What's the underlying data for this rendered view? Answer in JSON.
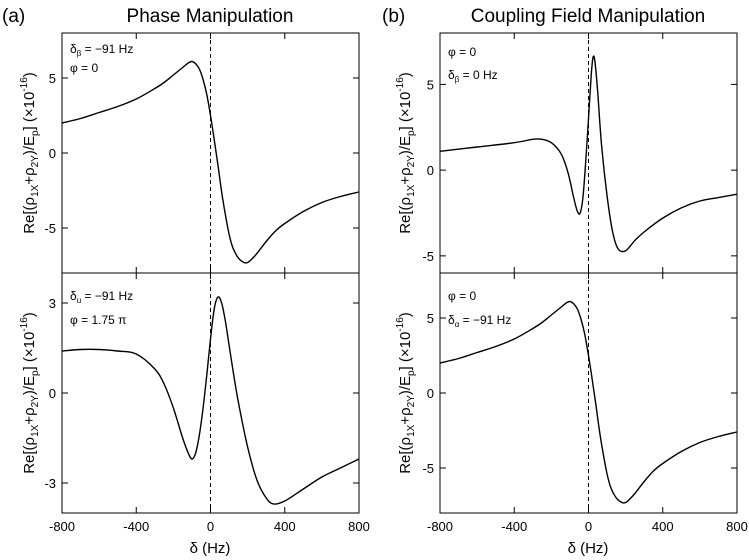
{
  "figure": {
    "panel_a_letter": "(a)",
    "panel_a_title": "Phase Manipulation",
    "panel_b_letter": "(b)",
    "panel_b_title": "Coupling Field Manipulation",
    "shared_xlabel": "δ (Hz)"
  },
  "chart_data": [
    {
      "id": "a-top",
      "type": "line",
      "ylabel": "Re[(ρ1X+ρ2Y)/Ep] (×10^-16)",
      "annotations": [
        "δβ = −91 Hz",
        "φ = 0"
      ],
      "xlim": [
        -800,
        800
      ],
      "ylim": [
        -8,
        8
      ],
      "xticks": [
        -800,
        -400,
        0,
        400,
        800
      ],
      "yticks": [
        -5,
        0,
        5
      ],
      "ytick_labels": [
        "-5",
        "0",
        "5"
      ],
      "vline_x": 0,
      "series": [
        {
          "x": [
            -800,
            -700,
            -600,
            -500,
            -400,
            -300,
            -250,
            -200,
            -150,
            -120,
            -100,
            -80,
            -60,
            -40,
            -20,
            0,
            20,
            40,
            60,
            80,
            100,
            120,
            150,
            180,
            200,
            220,
            250,
            300,
            350,
            400,
            500,
            600,
            700,
            800
          ],
          "values": [
            2.0,
            2.3,
            2.7,
            3.1,
            3.6,
            4.3,
            4.7,
            5.2,
            5.7,
            6.0,
            6.1,
            5.95,
            5.6,
            4.9,
            3.9,
            2.5,
            0.9,
            -0.8,
            -2.6,
            -4.1,
            -5.4,
            -6.3,
            -7.0,
            -7.3,
            -7.3,
            -7.1,
            -6.7,
            -5.9,
            -5.2,
            -4.7,
            -3.9,
            -3.3,
            -2.9,
            -2.6
          ]
        }
      ]
    },
    {
      "id": "a-bottom",
      "type": "line",
      "ylabel": "Re[(ρ1X+ρ2Y)/Ep] (×10^-16)",
      "annotations": [
        "δu = −91 Hz",
        "φ = 1.75 π"
      ],
      "xlim": [
        -800,
        800
      ],
      "ylim": [
        -4,
        4
      ],
      "xticks": [
        -800,
        -400,
        0,
        400,
        800
      ],
      "xtick_labels": [
        "-800",
        "-400",
        "0",
        "400",
        "800"
      ],
      "yticks": [
        -3,
        0,
        3
      ],
      "ytick_labels": [
        "-3",
        "0",
        "3"
      ],
      "vline_x": 0,
      "series": [
        {
          "x": [
            -800,
            -700,
            -600,
            -500,
            -400,
            -300,
            -250,
            -200,
            -150,
            -120,
            -100,
            -80,
            -60,
            -40,
            -20,
            0,
            20,
            40,
            60,
            80,
            100,
            120,
            150,
            200,
            250,
            300,
            340,
            400,
            500,
            600,
            700,
            800
          ],
          "values": [
            1.4,
            1.45,
            1.45,
            1.4,
            1.3,
            0.8,
            0.3,
            -0.5,
            -1.5,
            -2.0,
            -2.2,
            -2.0,
            -1.4,
            -0.5,
            0.6,
            1.8,
            2.8,
            3.2,
            3.0,
            2.4,
            1.6,
            0.8,
            -0.3,
            -1.8,
            -2.9,
            -3.5,
            -3.7,
            -3.6,
            -3.2,
            -2.8,
            -2.5,
            -2.2
          ]
        }
      ]
    },
    {
      "id": "b-top",
      "type": "line",
      "ylabel": "Re[(ρ1X+ρ2Y)/Ep] (×10^-16)",
      "annotations": [
        "φ = 0",
        "δβ = 0 Hz"
      ],
      "xlim": [
        -800,
        800
      ],
      "ylim": [
        -6,
        8
      ],
      "xticks": [
        -800,
        -400,
        0,
        400,
        800
      ],
      "yticks": [
        -5,
        0,
        5
      ],
      "ytick_labels": [
        "-5",
        "0",
        "5"
      ],
      "vline_x": 0,
      "series": [
        {
          "x": [
            -800,
            -600,
            -400,
            -300,
            -250,
            -200,
            -150,
            -120,
            -100,
            -80,
            -60,
            -45,
            -30,
            -15,
            0,
            15,
            25,
            35,
            50,
            70,
            100,
            130,
            160,
            200,
            250,
            300,
            400,
            500,
            600,
            700,
            800
          ],
          "values": [
            1.1,
            1.35,
            1.6,
            1.8,
            1.8,
            1.6,
            1.0,
            0.2,
            -0.6,
            -1.6,
            -2.4,
            -2.5,
            -1.6,
            0.5,
            3.0,
            5.6,
            6.6,
            6.3,
            4.5,
            1.5,
            -1.5,
            -3.6,
            -4.6,
            -4.7,
            -4.1,
            -3.6,
            -2.8,
            -2.2,
            -1.8,
            -1.6,
            -1.4
          ]
        }
      ]
    },
    {
      "id": "b-bottom",
      "type": "line",
      "ylabel": "Re[(ρ1X+ρ2Y)/Ep] (×10^-16)",
      "annotations": [
        "φ = 0",
        "δα = −91 Hz"
      ],
      "xlim": [
        -800,
        800
      ],
      "ylim": [
        -8,
        8
      ],
      "xticks": [
        -800,
        -400,
        0,
        400,
        800
      ],
      "xtick_labels": [
        "-800",
        "-400",
        "0",
        "400",
        "800"
      ],
      "yticks": [
        -5,
        0,
        5
      ],
      "ytick_labels": [
        "-5",
        "0",
        "5"
      ],
      "vline_x": 0,
      "series": [
        {
          "x": [
            -800,
            -700,
            -600,
            -500,
            -400,
            -300,
            -250,
            -200,
            -150,
            -120,
            -100,
            -80,
            -60,
            -40,
            -20,
            0,
            20,
            40,
            60,
            80,
            100,
            120,
            150,
            180,
            200,
            220,
            250,
            300,
            350,
            400,
            500,
            600,
            700,
            800
          ],
          "values": [
            2.0,
            2.3,
            2.7,
            3.1,
            3.6,
            4.3,
            4.7,
            5.2,
            5.7,
            6.0,
            6.1,
            5.95,
            5.6,
            4.9,
            3.9,
            2.5,
            0.9,
            -0.8,
            -2.6,
            -4.1,
            -5.4,
            -6.3,
            -7.0,
            -7.3,
            -7.3,
            -7.1,
            -6.7,
            -5.9,
            -5.2,
            -4.7,
            -3.9,
            -3.3,
            -2.9,
            -2.6
          ]
        }
      ]
    }
  ]
}
